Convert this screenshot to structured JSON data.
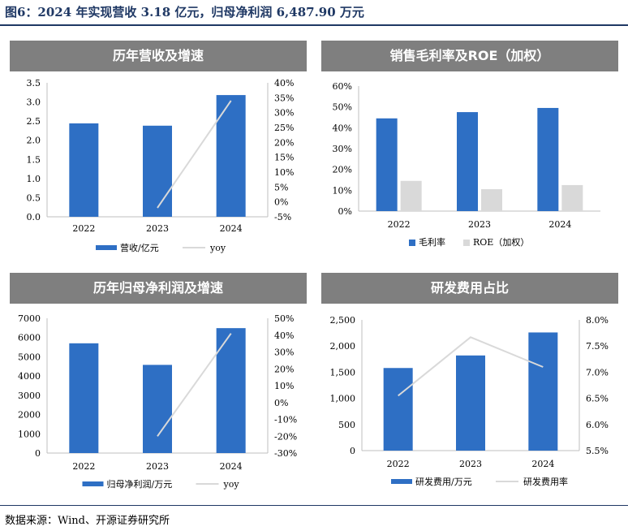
{
  "figure_title": "图6：2024 年实现营收 3.18 亿元，归母净利润 6,487.90 万元",
  "source": "数据来源：Wind、开源证券研究所",
  "panels": [
    {
      "header": "历年营收及增速"
    },
    {
      "header": "销售毛利率及ROE（加权）"
    },
    {
      "header": "历年归母净利润及增速"
    },
    {
      "header": "研发费用占比"
    }
  ],
  "colors": {
    "bar_blue": "#2e6fc4",
    "line_grey": "#d9d9d9",
    "header_grey": "#7f7f7f",
    "title_navy": "#1f3864"
  },
  "chart_data": [
    {
      "type": "bar",
      "title": "历年营收及增速",
      "categories": [
        "2022",
        "2023",
        "2024"
      ],
      "series": [
        {
          "name": "营收/亿元",
          "kind": "bar",
          "axis": "left",
          "values": [
            2.44,
            2.38,
            3.18
          ]
        },
        {
          "name": "yoy",
          "kind": "line",
          "axis": "right",
          "values": [
            null,
            -2.0,
            34.0
          ]
        }
      ],
      "ylim_left": [
        0,
        3.5
      ],
      "yticks_left": [
        0,
        0.5,
        1.0,
        1.5,
        2.0,
        2.5,
        3.0,
        3.5
      ],
      "ytick_labels_left": [
        "0.0",
        "0.5",
        "1.0",
        "1.5",
        "2.0",
        "2.5",
        "3.0",
        "3.5"
      ],
      "ylim_right": [
        -5,
        40
      ],
      "yticks_right": [
        -5,
        0,
        5,
        10,
        15,
        20,
        25,
        30,
        35,
        40
      ],
      "ytick_labels_right": [
        "-5%",
        "0%",
        "5%",
        "10%",
        "15%",
        "20%",
        "25%",
        "30%",
        "35%",
        "40%"
      ],
      "legend": "bottom",
      "grid": false
    },
    {
      "type": "bar",
      "title": "销售毛利率及ROE（加权）",
      "categories": [
        "2022",
        "2023",
        "2024"
      ],
      "series": [
        {
          "name": "毛利率",
          "kind": "bar",
          "axis": "left",
          "values": [
            44.5,
            47.5,
            49.5
          ]
        },
        {
          "name": "ROE（加权）",
          "kind": "bar",
          "axis": "left",
          "values": [
            14.5,
            10.5,
            12.5
          ]
        }
      ],
      "ylim_left": [
        0,
        60
      ],
      "yticks_left": [
        0,
        10,
        20,
        30,
        40,
        50,
        60
      ],
      "ytick_labels_left": [
        "0%",
        "10%",
        "20%",
        "30%",
        "40%",
        "50%",
        "60%"
      ],
      "legend": "bottom",
      "grid": false
    },
    {
      "type": "bar",
      "title": "历年归母净利润及增速",
      "categories": [
        "2022",
        "2023",
        "2024"
      ],
      "series": [
        {
          "name": "归母净利润/万元",
          "kind": "bar",
          "axis": "left",
          "values": [
            5700,
            4580,
            6487.9
          ]
        },
        {
          "name": "yoy",
          "kind": "line",
          "axis": "right",
          "values": [
            null,
            -20.0,
            41.0
          ]
        }
      ],
      "ylim_left": [
        0,
        7000
      ],
      "yticks_left": [
        0,
        1000,
        2000,
        3000,
        4000,
        5000,
        6000,
        7000
      ],
      "ytick_labels_left": [
        "0",
        "1000",
        "2000",
        "3000",
        "4000",
        "5000",
        "6000",
        "7000"
      ],
      "ylim_right": [
        -30,
        50
      ],
      "yticks_right": [
        -30,
        -20,
        -10,
        0,
        10,
        20,
        30,
        40,
        50
      ],
      "ytick_labels_right": [
        "-30%",
        "-20%",
        "-10%",
        "0%",
        "10%",
        "20%",
        "30%",
        "40%",
        "50%"
      ],
      "legend": "bottom",
      "grid": false
    },
    {
      "type": "bar",
      "title": "研发费用占比",
      "categories": [
        "2022",
        "2023",
        "2024"
      ],
      "series": [
        {
          "name": "研发费用/万元",
          "kind": "bar",
          "axis": "left",
          "values": [
            1580,
            1820,
            2260
          ]
        },
        {
          "name": "研发费用率",
          "kind": "line",
          "axis": "right",
          "values": [
            6.55,
            7.67,
            7.1
          ]
        }
      ],
      "ylim_left": [
        0,
        2500
      ],
      "yticks_left": [
        0,
        500,
        1000,
        1500,
        2000,
        2500
      ],
      "ytick_labels_left": [
        "0",
        "500",
        "1,000",
        "1,500",
        "2,000",
        "2,500"
      ],
      "ylim_right": [
        5.5,
        8.0
      ],
      "yticks_right": [
        5.5,
        6.0,
        6.5,
        7.0,
        7.5,
        8.0
      ],
      "ytick_labels_right": [
        "5.5%",
        "6.0%",
        "6.5%",
        "7.0%",
        "7.5%",
        "8.0%"
      ],
      "legend": "bottom",
      "grid": false
    }
  ]
}
